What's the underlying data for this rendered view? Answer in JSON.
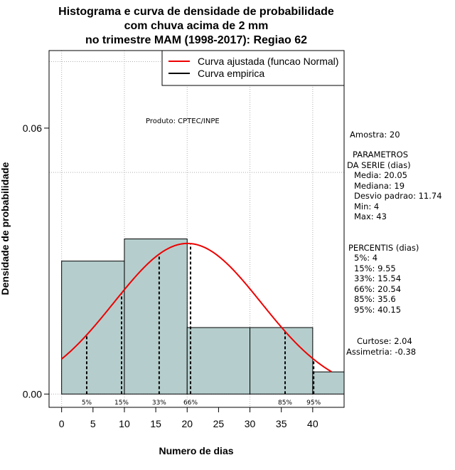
{
  "chart_data": {
    "type": "histogram",
    "title": [
      "Histograma e curva de densidade de probabilidade",
      "com chuva acima de 2 mm",
      "no trimestre MAM (1998-2017): Regiao 62"
    ],
    "xlabel": "Numero de dias",
    "ylabel": "Densidade de probabilidade",
    "xlim": [
      -2,
      45
    ],
    "ylim": [
      -0.003,
      0.0775
    ],
    "xticks": [
      0,
      5,
      10,
      15,
      20,
      25,
      30,
      35,
      40
    ],
    "yticks": [
      0.0,
      0.06
    ],
    "ytick_labels": [
      "0.00",
      "0.06"
    ],
    "grid_x": [
      0,
      10,
      20,
      30,
      40
    ],
    "grid_y": [
      0.0,
      0.05,
      0.075
    ],
    "bins": [
      {
        "start": 0,
        "end": 10,
        "density": 0.03
      },
      {
        "start": 10,
        "end": 20,
        "density": 0.035
      },
      {
        "start": 20,
        "end": 30,
        "density": 0.015
      },
      {
        "start": 30,
        "end": 40,
        "density": 0.015
      },
      {
        "start": 40,
        "end": 45,
        "density": 0.005
      }
    ],
    "normal_fit": {
      "mean": 20.05,
      "sd": 11.74,
      "x_from": 0,
      "x_to": 43
    },
    "percentile_lines": [
      {
        "label": "5%",
        "x": 4
      },
      {
        "label": "15%",
        "x": 9.55
      },
      {
        "label": "33%",
        "x": 15.54
      },
      {
        "label": "66%",
        "x": 20.54
      },
      {
        "label": "85%",
        "x": 35.6
      },
      {
        "label": "95%",
        "x": 40.15
      }
    ],
    "legend": [
      {
        "label": "Curva ajustada (funcao Normal)",
        "color": "#ee0000"
      },
      {
        "label": "Curva empirica",
        "color": "#000000"
      }
    ],
    "legend_position": "top-right",
    "colors": {
      "bar_fill": "#b5cecd",
      "curve": "#ee0000",
      "grid": "#b0b0b0"
    }
  },
  "credit": "Produto: CPTEC/INPE",
  "side_panel": {
    "sample": "Amostra: 20",
    "params_lines": [
      "PARAMETROS",
      "DA SERIE (dias)",
      "Media: 20.05",
      "Mediana: 19",
      "Desvio padrao: 11.74",
      "Min: 4",
      "Max: 43"
    ],
    "percentile_lines": [
      "PERCENTIS (dias)",
      "5%: 4",
      "15%: 9.55",
      "33%: 15.54",
      "66%: 20.54",
      "85%: 35.6",
      "95%: 40.15"
    ],
    "kurtosis": "Curtose: 2.04",
    "skewness": "Assimetria: -0.38"
  }
}
